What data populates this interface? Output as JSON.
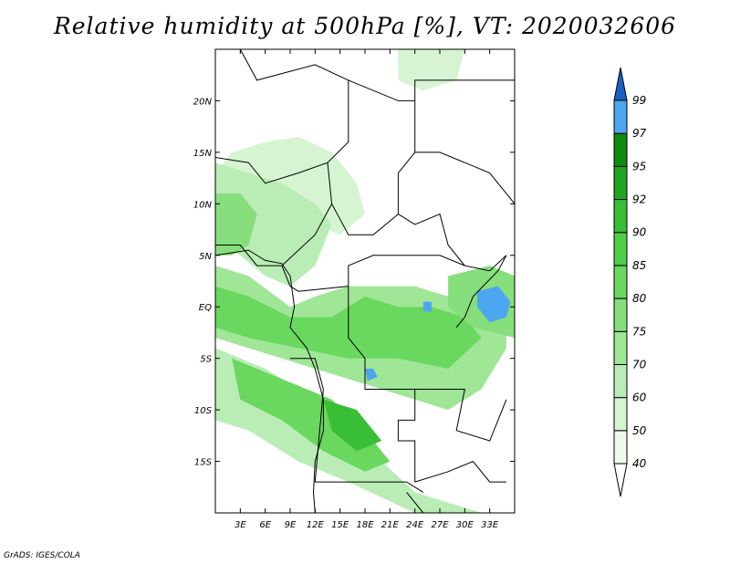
{
  "title": "Relative humidity at 500hPa [%], VT: 2020032606",
  "credit": "GrADS: IGES/COLA",
  "map": {
    "lon_range": [
      0,
      36
    ],
    "lat_range": [
      -20,
      25
    ],
    "lon_ticks": [
      {
        "lon": 3,
        "label": "3E"
      },
      {
        "lon": 6,
        "label": "6E"
      },
      {
        "lon": 9,
        "label": "9E"
      },
      {
        "lon": 12,
        "label": "12E"
      },
      {
        "lon": 15,
        "label": "15E"
      },
      {
        "lon": 18,
        "label": "18E"
      },
      {
        "lon": 21,
        "label": "21E"
      },
      {
        "lon": 24,
        "label": "24E"
      },
      {
        "lon": 27,
        "label": "27E"
      },
      {
        "lon": 30,
        "label": "30E"
      },
      {
        "lon": 33,
        "label": "33E"
      }
    ],
    "lat_ticks": [
      {
        "lat": 20,
        "label": "20N"
      },
      {
        "lat": 15,
        "label": "15N"
      },
      {
        "lat": 10,
        "label": "10N"
      },
      {
        "lat": 5,
        "label": "5N"
      },
      {
        "lat": 0,
        "label": "EQ"
      },
      {
        "lat": -5,
        "label": "5S"
      },
      {
        "lat": -10,
        "label": "10S"
      },
      {
        "lat": -15,
        "label": "15S"
      }
    ]
  },
  "colorbar": {
    "levels": [
      {
        "label": "40",
        "color": "#effaee"
      },
      {
        "label": "50",
        "color": "#d6f4d2"
      },
      {
        "label": "60",
        "color": "#b9edb5"
      },
      {
        "label": "70",
        "color": "#a0e697"
      },
      {
        "label": "75",
        "color": "#86de7c"
      },
      {
        "label": "80",
        "color": "#6ad75f"
      },
      {
        "label": "85",
        "color": "#4fcf47"
      },
      {
        "label": "90",
        "color": "#38bf35"
      },
      {
        "label": "92",
        "color": "#1fa61f"
      },
      {
        "label": "95",
        "color": "#0f8c0f"
      },
      {
        "label": "97",
        "color": "#4da6f0"
      },
      {
        "label": "99",
        "color": "#2479d9"
      }
    ],
    "top_color": "#1a5fc4",
    "bottom_color": "#ffffff"
  },
  "fields": [
    {
      "name": "rh-north-band",
      "color": "#d6f4d2",
      "points": [
        [
          2,
          15
        ],
        [
          6,
          16
        ],
        [
          10,
          16.5
        ],
        [
          14,
          15
        ],
        [
          17,
          12
        ],
        [
          18,
          9
        ],
        [
          15,
          7
        ],
        [
          12,
          8
        ],
        [
          8,
          10
        ],
        [
          4,
          12
        ],
        [
          0,
          13
        ]
      ]
    },
    {
      "name": "rh-west-africa",
      "color": "#b9edb5",
      "points": [
        [
          0,
          14
        ],
        [
          4,
          13
        ],
        [
          8,
          12
        ],
        [
          12,
          10
        ],
        [
          14,
          8
        ],
        [
          12,
          4
        ],
        [
          9,
          2
        ],
        [
          6,
          3
        ],
        [
          3,
          5
        ],
        [
          0,
          6
        ]
      ]
    },
    {
      "name": "rh-west-core",
      "color": "#86de7c",
      "points": [
        [
          0,
          11
        ],
        [
          3,
          11
        ],
        [
          5,
          9
        ],
        [
          4,
          6
        ],
        [
          2,
          5
        ],
        [
          0,
          5
        ]
      ]
    },
    {
      "name": "rh-congo-basin",
      "color": "#a0e697",
      "points": [
        [
          0,
          4
        ],
        [
          4,
          3
        ],
        [
          9,
          0
        ],
        [
          12,
          1
        ],
        [
          16,
          2
        ],
        [
          20,
          2
        ],
        [
          24,
          2
        ],
        [
          28,
          1
        ],
        [
          32,
          3
        ],
        [
          35,
          3
        ],
        [
          35,
          -4
        ],
        [
          32,
          -8
        ],
        [
          28,
          -10
        ],
        [
          24,
          -9
        ],
        [
          20,
          -8
        ],
        [
          16,
          -7
        ],
        [
          12,
          -6
        ],
        [
          8,
          -5
        ],
        [
          4,
          -4
        ],
        [
          0,
          -3
        ]
      ]
    },
    {
      "name": "rh-congo-inner",
      "color": "#6ad75f",
      "points": [
        [
          0,
          2
        ],
        [
          4,
          1
        ],
        [
          9,
          -1
        ],
        [
          14,
          -1
        ],
        [
          18,
          1
        ],
        [
          22,
          0
        ],
        [
          26,
          0
        ],
        [
          30,
          -1
        ],
        [
          32,
          -3
        ],
        [
          28,
          -6
        ],
        [
          22,
          -5
        ],
        [
          16,
          -5
        ],
        [
          10,
          -4
        ],
        [
          4,
          -3
        ],
        [
          0,
          -2
        ]
      ]
    },
    {
      "name": "rh-southwest-plume",
      "color": "#b9edb5",
      "points": [
        [
          0,
          -4
        ],
        [
          6,
          -6
        ],
        [
          12,
          -9
        ],
        [
          16,
          -12
        ],
        [
          20,
          -15
        ],
        [
          24,
          -18
        ],
        [
          28,
          -19
        ],
        [
          32,
          -20
        ],
        [
          24,
          -20
        ],
        [
          16,
          -17
        ],
        [
          10,
          -15
        ],
        [
          4,
          -12
        ],
        [
          0,
          -11
        ]
      ]
    },
    {
      "name": "rh-angola-core",
      "color": "#6ad75f",
      "points": [
        [
          2,
          -5
        ],
        [
          8,
          -7
        ],
        [
          14,
          -9
        ],
        [
          18,
          -12
        ],
        [
          21,
          -15
        ],
        [
          18,
          -16
        ],
        [
          13,
          -14
        ],
        [
          8,
          -11
        ],
        [
          3,
          -9
        ]
      ]
    },
    {
      "name": "rh-angola-deep",
      "color": "#38bf35",
      "points": [
        [
          13,
          -9
        ],
        [
          17,
          -10
        ],
        [
          20,
          -13
        ],
        [
          17,
          -14
        ],
        [
          14,
          -12
        ]
      ]
    },
    {
      "name": "rh-sahara-north",
      "color": "#d6f4d2",
      "points": [
        [
          22,
          25
        ],
        [
          30,
          25
        ],
        [
          29,
          22
        ],
        [
          25,
          21
        ],
        [
          22,
          22
        ]
      ]
    },
    {
      "name": "rh-east-lakes",
      "color": "#86de7c",
      "points": [
        [
          28,
          3
        ],
        [
          33,
          4
        ],
        [
          36,
          3
        ],
        [
          36,
          -3
        ],
        [
          31,
          -2
        ],
        [
          28,
          0
        ]
      ]
    },
    {
      "name": "rh-lake-victoria",
      "color": "#4da6f0",
      "points": [
        [
          31.5,
          1.5
        ],
        [
          34,
          2
        ],
        [
          35.5,
          0.5
        ],
        [
          35,
          -1
        ],
        [
          33,
          -1.5
        ],
        [
          31.5,
          0
        ]
      ]
    },
    {
      "name": "rh-lake-patch-1",
      "color": "#4da6f0",
      "points": [
        [
          18,
          -6
        ],
        [
          19,
          -6
        ],
        [
          19.5,
          -6.8
        ],
        [
          18.3,
          -7.2
        ]
      ]
    },
    {
      "name": "rh-lake-patch-2",
      "color": "#4da6f0",
      "points": [
        [
          25,
          0.5
        ],
        [
          26,
          0.5
        ],
        [
          26,
          -0.5
        ],
        [
          25,
          -0.4
        ]
      ]
    }
  ],
  "borders": [
    [
      [
        3,
        25
      ],
      [
        5,
        22
      ],
      [
        12,
        23.5
      ],
      [
        16,
        22
      ]
    ],
    [
      [
        16,
        22
      ],
      [
        16,
        16
      ],
      [
        13.5,
        14
      ],
      [
        10,
        13
      ],
      [
        6,
        12
      ],
      [
        4,
        14
      ],
      [
        0,
        14.5
      ]
    ],
    [
      [
        16,
        22
      ],
      [
        22,
        20
      ],
      [
        24,
        20
      ]
    ],
    [
      [
        24,
        20
      ],
      [
        24,
        15
      ],
      [
        22,
        13
      ],
      [
        22,
        9
      ],
      [
        19,
        7
      ],
      [
        16,
        7
      ],
      [
        14,
        10
      ],
      [
        13.5,
        14
      ]
    ],
    [
      [
        22,
        9
      ],
      [
        24,
        8
      ],
      [
        27,
        9
      ],
      [
        28,
        6
      ],
      [
        30,
        4
      ],
      [
        33,
        3.5
      ],
      [
        35,
        5
      ]
    ],
    [
      [
        24,
        20
      ],
      [
        24,
        22
      ],
      [
        36,
        22
      ]
    ],
    [
      [
        24,
        15
      ],
      [
        27,
        15
      ],
      [
        33,
        13
      ],
      [
        36,
        10
      ]
    ],
    [
      [
        0,
        6
      ],
      [
        3,
        6
      ],
      [
        5,
        4
      ],
      [
        8,
        4
      ],
      [
        9,
        2
      ],
      [
        10,
        1.5
      ]
    ],
    [
      [
        8,
        4
      ],
      [
        12,
        7
      ],
      [
        14,
        10
      ]
    ],
    [
      [
        10,
        1.5
      ],
      [
        16,
        2
      ],
      [
        16,
        4
      ],
      [
        19,
        5
      ],
      [
        24,
        5
      ],
      [
        27,
        5
      ],
      [
        30,
        4
      ]
    ],
    [
      [
        16,
        2
      ],
      [
        16,
        -3
      ],
      [
        18,
        -5
      ],
      [
        18,
        -8
      ],
      [
        20,
        -8
      ],
      [
        24,
        -8
      ],
      [
        26,
        -8
      ]
    ],
    [
      [
        9,
        -5
      ],
      [
        12,
        -5
      ],
      [
        13,
        -8
      ],
      [
        12,
        -17
      ],
      [
        16,
        -17
      ],
      [
        20,
        -17
      ],
      [
        23,
        -17
      ],
      [
        25,
        -18
      ]
    ],
    [
      [
        24,
        -8
      ],
      [
        24,
        -11
      ],
      [
        22,
        -11
      ],
      [
        22,
        -13
      ],
      [
        24,
        -13
      ],
      [
        24,
        -17
      ]
    ],
    [
      [
        26,
        -8
      ],
      [
        30,
        -8
      ],
      [
        29,
        -12
      ],
      [
        33,
        -13
      ],
      [
        35,
        -9
      ]
    ],
    [
      [
        29,
        -2
      ],
      [
        30,
        -1
      ],
      [
        31,
        1
      ],
      [
        34,
        3.5
      ],
      [
        35,
        5
      ]
    ],
    [
      [
        24,
        -17
      ],
      [
        28,
        -16
      ],
      [
        31,
        -15
      ],
      [
        33,
        -17
      ],
      [
        35,
        -17
      ]
    ],
    [
      [
        23,
        -18
      ],
      [
        25,
        -20
      ]
    ]
  ],
  "coast": [
    [
      [
        0,
        5
      ],
      [
        4,
        5.5
      ],
      [
        6,
        4.5
      ],
      [
        8,
        4.2
      ],
      [
        9,
        3
      ],
      [
        9.5,
        0
      ],
      [
        9,
        -2
      ],
      [
        11,
        -4
      ],
      [
        12,
        -6
      ],
      [
        13,
        -9
      ],
      [
        13,
        -12
      ],
      [
        12,
        -15
      ],
      [
        11.8,
        -18
      ],
      [
        12,
        -20
      ]
    ]
  ]
}
